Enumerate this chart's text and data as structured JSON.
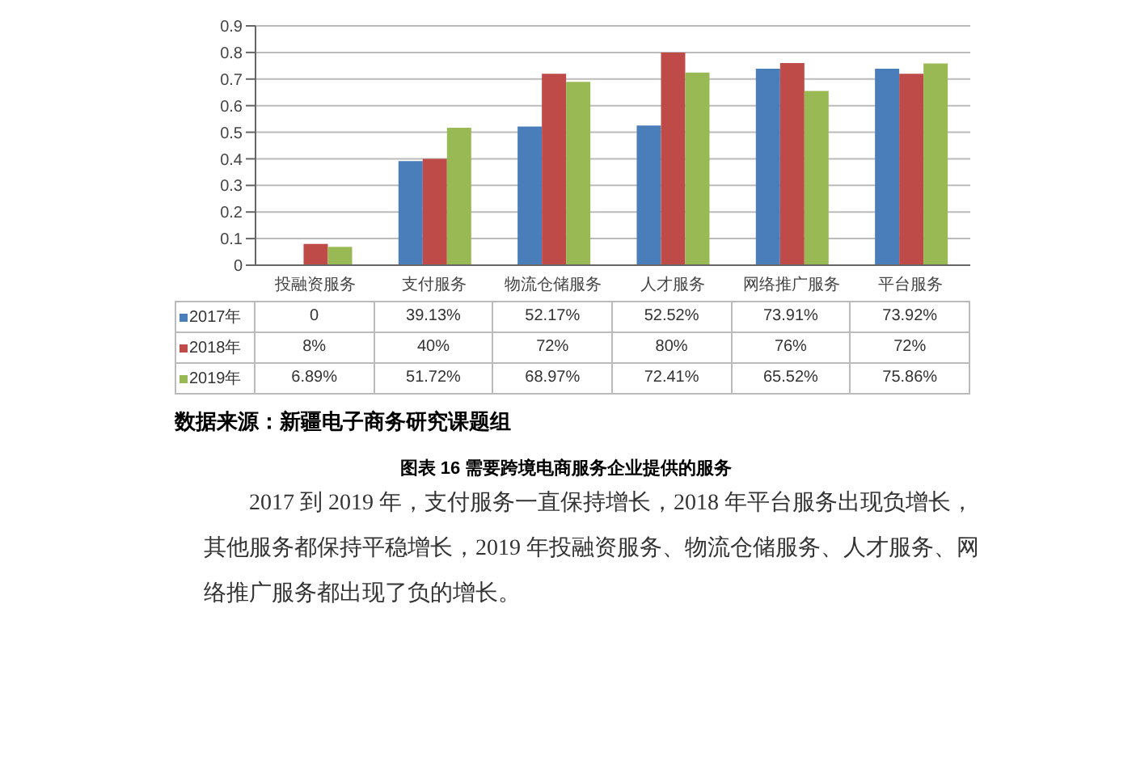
{
  "chart_data": {
    "type": "bar",
    "title": "图表 16 需要跨境电商服务企业提供的服务",
    "categories": [
      "投融资服务",
      "支付服务",
      "物流仓储服务",
      "人才服务",
      "网络推广服务",
      "平台服务"
    ],
    "series": [
      {
        "name": "2017年",
        "color": "#4a7ebb",
        "values": [
          0,
          0.3913,
          0.5217,
          0.5252,
          0.7391,
          0.7392
        ],
        "value_labels": [
          "0",
          "39.13%",
          "52.17%",
          "52.52%",
          "73.91%",
          "73.92%"
        ]
      },
      {
        "name": "2018年",
        "color": "#be4b48",
        "values": [
          0.08,
          0.4,
          0.72,
          0.8,
          0.76,
          0.72
        ],
        "value_labels": [
          "8%",
          "40%",
          "72%",
          "80%",
          "76%",
          "72%"
        ]
      },
      {
        "name": "2019年",
        "color": "#98b954",
        "values": [
          0.0689,
          0.5172,
          0.6897,
          0.7241,
          0.6552,
          0.7586
        ],
        "value_labels": [
          "6.89%",
          "51.72%",
          "68.97%",
          "72.41%",
          "65.52%",
          "75.86%"
        ]
      }
    ],
    "ylim": [
      0,
      0.9
    ],
    "yticks": [
      0,
      0.1,
      0.2,
      0.3,
      0.4,
      0.5,
      0.6,
      0.7,
      0.8,
      0.9
    ],
    "grid": "y",
    "legend": "bottom",
    "annotations": [
      "数据来源：新疆电子商务研究课题组",
      "2017 到 2019 年，支付服务一直保持增长，2018 年平台服务出现负增长，其他服务都保持平稳增长，2019 年投融资服务、物流仓储服务、人才服务、网络推广服务都出现了负的增长。"
    ]
  }
}
